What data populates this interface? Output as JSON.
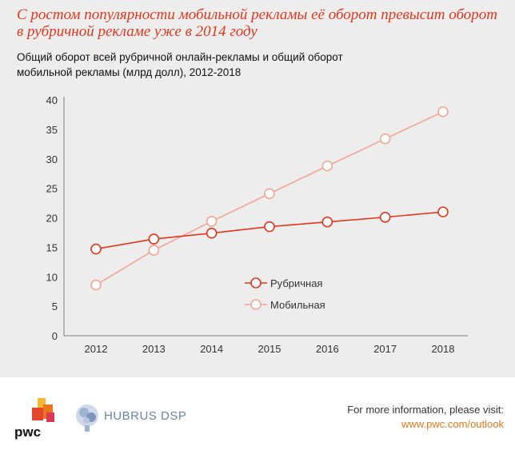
{
  "header": {
    "headline": "С ростом популярности мобильной рекламы её оборот превысит оборот в рубричной рекламе уже в 2014 году",
    "subtitle": "Общий оборот всей рубричной онлайн-рекламы и общий оборот мобильной рекламы (млрд долл), 2012-2018"
  },
  "chart_data": {
    "type": "line",
    "x": [
      "2012",
      "2013",
      "2014",
      "2015",
      "2016",
      "2017",
      "2018"
    ],
    "ylim": [
      0,
      40
    ],
    "yticks": [
      0,
      5,
      10,
      15,
      20,
      25,
      30,
      35,
      40
    ],
    "series": [
      {
        "name": "Рубричная",
        "color": "#e2361d",
        "values": [
          14.7,
          16.4,
          17.4,
          18.5,
          19.3,
          20.1,
          21.0
        ]
      },
      {
        "name": "Мобильная",
        "color": "#f4a594",
        "values": [
          8.6,
          14.5,
          19.4,
          24.1,
          28.8,
          33.4,
          38.0
        ]
      }
    ],
    "legend_position": "inside-lower-right",
    "grid": false
  },
  "footer": {
    "pwc_logo": "pwc",
    "partner_logo": "HUBRUS DSP",
    "info_label": "For more information, please visit:",
    "info_link": "www.pwc.com/outlook"
  }
}
